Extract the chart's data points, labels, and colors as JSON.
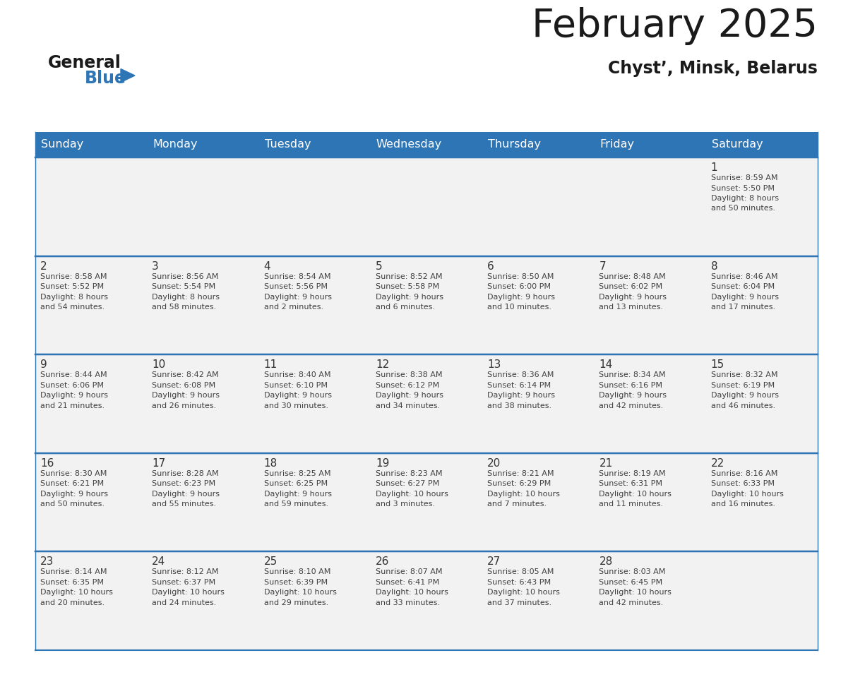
{
  "title": "February 2025",
  "subtitle": "Chyst’, Minsk, Belarus",
  "days_of_week": [
    "Sunday",
    "Monday",
    "Tuesday",
    "Wednesday",
    "Thursday",
    "Friday",
    "Saturday"
  ],
  "header_bg": "#2E75B6",
  "header_text": "#FFFFFF",
  "cell_bg": "#F2F2F2",
  "border_color": "#2E75B6",
  "text_color": "#404040",
  "day_number_color": "#333333",
  "calendar": [
    [
      null,
      null,
      null,
      null,
      null,
      null,
      {
        "day": "1",
        "sunrise": "8:59 AM",
        "sunset": "5:50 PM",
        "daylight1": "8 hours",
        "daylight2": "and 50 minutes."
      }
    ],
    [
      {
        "day": "2",
        "sunrise": "8:58 AM",
        "sunset": "5:52 PM",
        "daylight1": "8 hours",
        "daylight2": "and 54 minutes."
      },
      {
        "day": "3",
        "sunrise": "8:56 AM",
        "sunset": "5:54 PM",
        "daylight1": "8 hours",
        "daylight2": "and 58 minutes."
      },
      {
        "day": "4",
        "sunrise": "8:54 AM",
        "sunset": "5:56 PM",
        "daylight1": "9 hours",
        "daylight2": "and 2 minutes."
      },
      {
        "day": "5",
        "sunrise": "8:52 AM",
        "sunset": "5:58 PM",
        "daylight1": "9 hours",
        "daylight2": "and 6 minutes."
      },
      {
        "day": "6",
        "sunrise": "8:50 AM",
        "sunset": "6:00 PM",
        "daylight1": "9 hours",
        "daylight2": "and 10 minutes."
      },
      {
        "day": "7",
        "sunrise": "8:48 AM",
        "sunset": "6:02 PM",
        "daylight1": "9 hours",
        "daylight2": "and 13 minutes."
      },
      {
        "day": "8",
        "sunrise": "8:46 AM",
        "sunset": "6:04 PM",
        "daylight1": "9 hours",
        "daylight2": "and 17 minutes."
      }
    ],
    [
      {
        "day": "9",
        "sunrise": "8:44 AM",
        "sunset": "6:06 PM",
        "daylight1": "9 hours",
        "daylight2": "and 21 minutes."
      },
      {
        "day": "10",
        "sunrise": "8:42 AM",
        "sunset": "6:08 PM",
        "daylight1": "9 hours",
        "daylight2": "and 26 minutes."
      },
      {
        "day": "11",
        "sunrise": "8:40 AM",
        "sunset": "6:10 PM",
        "daylight1": "9 hours",
        "daylight2": "and 30 minutes."
      },
      {
        "day": "12",
        "sunrise": "8:38 AM",
        "sunset": "6:12 PM",
        "daylight1": "9 hours",
        "daylight2": "and 34 minutes."
      },
      {
        "day": "13",
        "sunrise": "8:36 AM",
        "sunset": "6:14 PM",
        "daylight1": "9 hours",
        "daylight2": "and 38 minutes."
      },
      {
        "day": "14",
        "sunrise": "8:34 AM",
        "sunset": "6:16 PM",
        "daylight1": "9 hours",
        "daylight2": "and 42 minutes."
      },
      {
        "day": "15",
        "sunrise": "8:32 AM",
        "sunset": "6:19 PM",
        "daylight1": "9 hours",
        "daylight2": "and 46 minutes."
      }
    ],
    [
      {
        "day": "16",
        "sunrise": "8:30 AM",
        "sunset": "6:21 PM",
        "daylight1": "9 hours",
        "daylight2": "and 50 minutes."
      },
      {
        "day": "17",
        "sunrise": "8:28 AM",
        "sunset": "6:23 PM",
        "daylight1": "9 hours",
        "daylight2": "and 55 minutes."
      },
      {
        "day": "18",
        "sunrise": "8:25 AM",
        "sunset": "6:25 PM",
        "daylight1": "9 hours",
        "daylight2": "and 59 minutes."
      },
      {
        "day": "19",
        "sunrise": "8:23 AM",
        "sunset": "6:27 PM",
        "daylight1": "10 hours",
        "daylight2": "and 3 minutes."
      },
      {
        "day": "20",
        "sunrise": "8:21 AM",
        "sunset": "6:29 PM",
        "daylight1": "10 hours",
        "daylight2": "and 7 minutes."
      },
      {
        "day": "21",
        "sunrise": "8:19 AM",
        "sunset": "6:31 PM",
        "daylight1": "10 hours",
        "daylight2": "and 11 minutes."
      },
      {
        "day": "22",
        "sunrise": "8:16 AM",
        "sunset": "6:33 PM",
        "daylight1": "10 hours",
        "daylight2": "and 16 minutes."
      }
    ],
    [
      {
        "day": "23",
        "sunrise": "8:14 AM",
        "sunset": "6:35 PM",
        "daylight1": "10 hours",
        "daylight2": "and 20 minutes."
      },
      {
        "day": "24",
        "sunrise": "8:12 AM",
        "sunset": "6:37 PM",
        "daylight1": "10 hours",
        "daylight2": "and 24 minutes."
      },
      {
        "day": "25",
        "sunrise": "8:10 AM",
        "sunset": "6:39 PM",
        "daylight1": "10 hours",
        "daylight2": "and 29 minutes."
      },
      {
        "day": "26",
        "sunrise": "8:07 AM",
        "sunset": "6:41 PM",
        "daylight1": "10 hours",
        "daylight2": "and 33 minutes."
      },
      {
        "day": "27",
        "sunrise": "8:05 AM",
        "sunset": "6:43 PM",
        "daylight1": "10 hours",
        "daylight2": "and 37 minutes."
      },
      {
        "day": "28",
        "sunrise": "8:03 AM",
        "sunset": "6:45 PM",
        "daylight1": "10 hours",
        "daylight2": "and 42 minutes."
      },
      null
    ]
  ],
  "logo_general_color": "#1a1a1a",
  "logo_blue_color": "#2E75B6",
  "logo_triangle_color": "#2E75B6"
}
